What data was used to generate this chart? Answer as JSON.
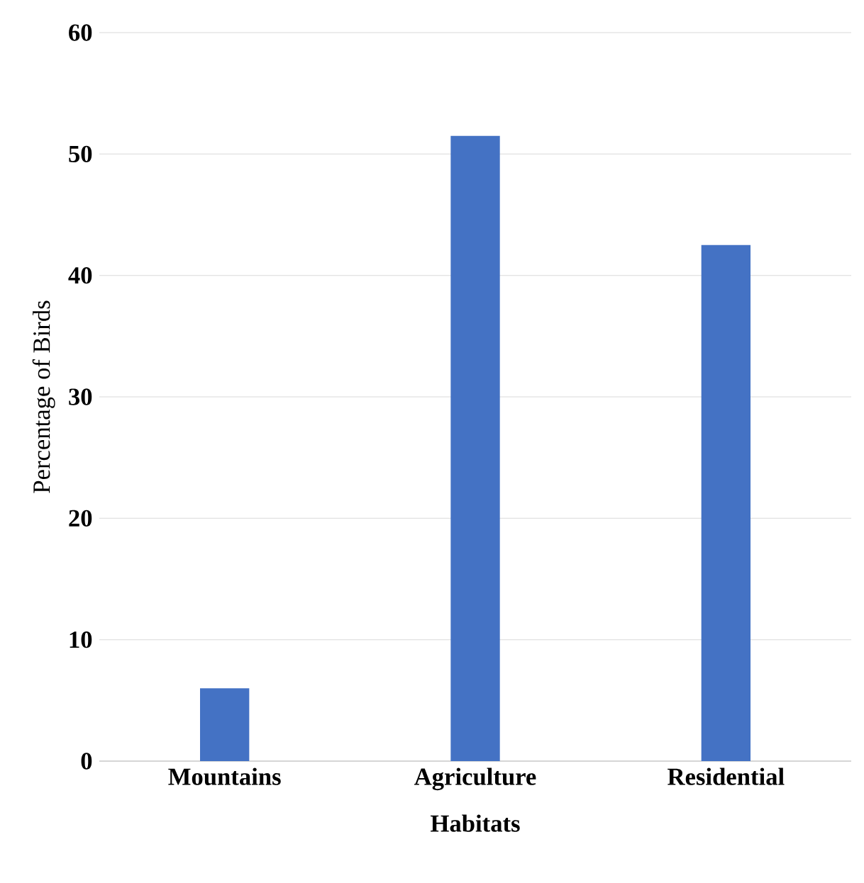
{
  "chart_data": {
    "type": "bar",
    "xlabel": "Habitats",
    "ylabel": "Percentage of Birds",
    "categories": [
      "Mountains",
      "Agriculture",
      "Residential"
    ],
    "values": [
      6,
      51.5,
      42.5
    ],
    "color": "#4472c4",
    "ylim": [
      0,
      60
    ],
    "yticks": [
      0,
      10,
      20,
      30,
      40,
      50,
      60
    ],
    "grid": "y"
  }
}
